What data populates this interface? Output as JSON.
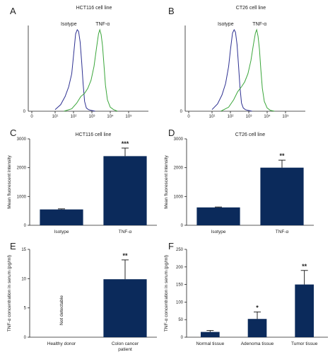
{
  "chart_data": [
    {
      "panel": "A",
      "type": "line",
      "title": "HCT116 cell line",
      "x_scale": "log",
      "x_ticks": [
        "0",
        "10¹",
        "10²",
        "10³",
        "10⁴",
        "10⁵"
      ],
      "y_ticks": [
        "0"
      ],
      "series": [
        {
          "name": "Isotype",
          "color": "#2e3192",
          "x": [
            10,
            20,
            35,
            55,
            80,
            100,
            130,
            160,
            190,
            230,
            280,
            330,
            400,
            500,
            650,
            900,
            1500
          ],
          "y": [
            2,
            8,
            18,
            30,
            46,
            68,
            95,
            100,
            98,
            85,
            60,
            35,
            12,
            4,
            2,
            1,
            0
          ]
        },
        {
          "name": "TNF-α",
          "color": "#3aa63a",
          "x": [
            30,
            80,
            150,
            250,
            400,
            600,
            900,
            1300,
            1800,
            2300,
            2700,
            3200,
            3800,
            4500,
            5500,
            7000,
            10000,
            15000,
            25000
          ],
          "y": [
            0,
            3,
            10,
            18,
            22,
            28,
            38,
            55,
            78,
            95,
            100,
            94,
            80,
            58,
            32,
            14,
            5,
            2,
            0
          ]
        }
      ]
    },
    {
      "panel": "B",
      "type": "line",
      "title": "CT26 cell line",
      "x_scale": "log",
      "x_ticks": [
        "0",
        "10¹",
        "10²",
        "10³",
        "10⁴",
        "10⁵"
      ],
      "y_ticks": [
        "0"
      ],
      "series": [
        {
          "name": "Isotype",
          "color": "#2e3192",
          "x": [
            10,
            20,
            35,
            55,
            80,
            100,
            130,
            160,
            190,
            230,
            280,
            330,
            400,
            500,
            650,
            900,
            1500
          ],
          "y": [
            2,
            9,
            20,
            34,
            55,
            75,
            96,
            100,
            97,
            82,
            55,
            30,
            10,
            4,
            2,
            1,
            0
          ]
        },
        {
          "name": "TNF-α",
          "color": "#3aa63a",
          "x": [
            30,
            80,
            150,
            250,
            400,
            600,
            900,
            1300,
            1800,
            2300,
            2700,
            3200,
            3800,
            4500,
            5500,
            7000,
            10000,
            15000,
            25000
          ],
          "y": [
            0,
            5,
            14,
            24,
            30,
            36,
            46,
            62,
            82,
            96,
            100,
            92,
            76,
            52,
            28,
            12,
            4,
            1,
            0
          ]
        }
      ]
    },
    {
      "panel": "C",
      "type": "bar",
      "title": "HCT116 cell line",
      "ylabel": "Mean fluorescent intensity",
      "categories": [
        "Isotype",
        "TNF-α"
      ],
      "values": [
        550,
        2400
      ],
      "errors": [
        20,
        280
      ],
      "significance": [
        "",
        "***"
      ],
      "ylim": [
        0,
        3000
      ],
      "y_ticks": [
        0,
        1000,
        2000,
        3000
      ],
      "color": "#0b2a5b"
    },
    {
      "panel": "D",
      "type": "bar",
      "title": "CT26 cell line",
      "ylabel": "Mean fluorescent intensity",
      "categories": [
        "Isotype",
        "TNF-α"
      ],
      "values": [
        620,
        2000
      ],
      "errors": [
        15,
        260
      ],
      "significance": [
        "",
        "**"
      ],
      "ylim": [
        0,
        3000
      ],
      "y_ticks": [
        0,
        1000,
        2000,
        3000
      ],
      "color": "#0b2a5b"
    },
    {
      "panel": "E",
      "type": "bar",
      "title": "",
      "ylabel": "TNF-α concentration in serum (pg/ml)",
      "categories": [
        "Healthy donor",
        "Colon cancer patient"
      ],
      "values": [
        0,
        9.9
      ],
      "errors": [
        0,
        3.3
      ],
      "significance": [
        "",
        "**"
      ],
      "annotations": [
        "Not detectable",
        ""
      ],
      "ylim": [
        0,
        15
      ],
      "y_ticks": [
        0,
        5,
        10,
        15
      ],
      "color": "#0b2a5b"
    },
    {
      "panel": "F",
      "type": "bar",
      "title": "",
      "ylabel": "TNF-α concentration in serum (pg/ml)",
      "categories": [
        "Normal tissue",
        "Adenoma tissue",
        "Tumor tissue"
      ],
      "values": [
        15,
        52,
        150
      ],
      "errors": [
        4,
        20,
        40
      ],
      "significance": [
        "",
        "*",
        "**"
      ],
      "ylim": [
        0,
        250
      ],
      "y_ticks": [
        0,
        50,
        100,
        150,
        200,
        250
      ],
      "color": "#0b2a5b"
    }
  ]
}
